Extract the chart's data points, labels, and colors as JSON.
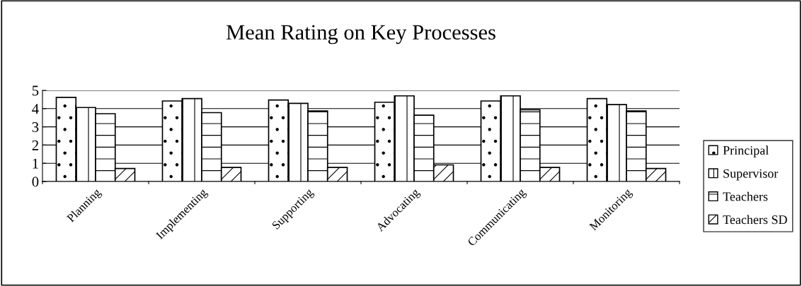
{
  "chart_data": {
    "type": "bar",
    "title": "Mean Rating on Key Processes",
    "categories": [
      "Planning",
      "Implementing",
      "Supporting",
      "Advocating",
      "Communicating",
      "Monitoring"
    ],
    "series": [
      {
        "name": "Principal",
        "color": "#000000",
        "values": [
          4.62,
          4.42,
          4.47,
          4.35,
          4.42,
          4.55
        ]
      },
      {
        "name": "Supervisor",
        "color": "#000000",
        "values": [
          4.06,
          4.55,
          4.29,
          4.7,
          4.7,
          4.22
        ]
      },
      {
        "name": "Teachers",
        "color": "#000000",
        "values": [
          3.72,
          3.78,
          3.87,
          3.64,
          3.94,
          3.87
        ]
      },
      {
        "name": "Teachers SD",
        "color": "#000000",
        "values": [
          0.71,
          0.77,
          0.77,
          0.91,
          0.77,
          0.71
        ]
      }
    ],
    "ylim": [
      0,
      5
    ],
    "yticks": [
      0,
      1,
      2,
      3,
      4,
      5
    ],
    "grid": "y",
    "legend": "right"
  }
}
